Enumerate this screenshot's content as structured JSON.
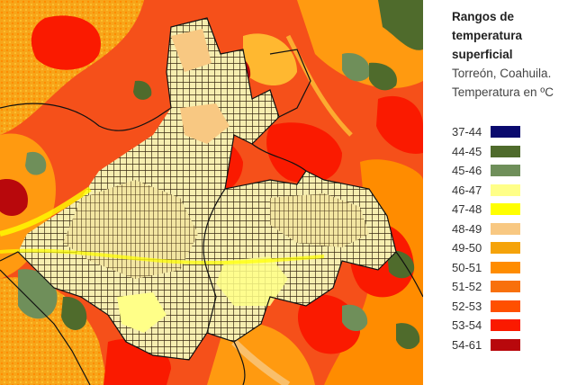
{
  "legend": {
    "title_line1": "Rangos de temperatura",
    "title_line2": "superficial",
    "place": "Torreón, Coahuila.",
    "unit": "Temperatura en ºC",
    "items": [
      {
        "label": "37-44",
        "color": "#0a0a6e"
      },
      {
        "label": "44-45",
        "color": "#4f6b2c"
      },
      {
        "label": "45-46",
        "color": "#6f8f5a"
      },
      {
        "label": "46-47",
        "color": "#ffff88"
      },
      {
        "label": "47-48",
        "color": "#ffff00"
      },
      {
        "label": "48-49",
        "color": "#f8c882"
      },
      {
        "label": "49-50",
        "color": "#f5a30a"
      },
      {
        "label": "50-51",
        "color": "#ff8c00"
      },
      {
        "label": "51-52",
        "color": "#f8700c"
      },
      {
        "label": "52-53",
        "color": "#ff5000"
      },
      {
        "label": "53-54",
        "color": "#fa1a00"
      },
      {
        "label": "54-61",
        "color": "#b8080c"
      }
    ]
  }
}
